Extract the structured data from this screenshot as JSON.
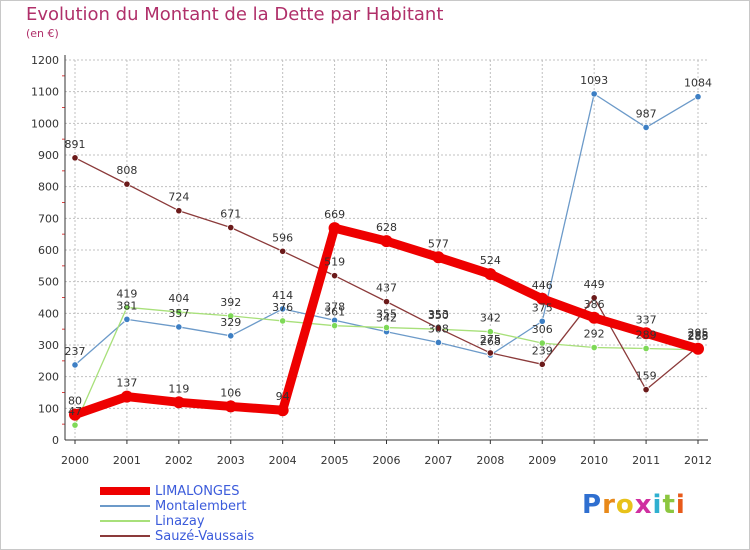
{
  "header": {
    "title": "Evolution du Montant de la Dette par Habitant",
    "subtitle": "(en €)"
  },
  "logo": {
    "text": "Proxiti",
    "colors": [
      "#2f6fd0",
      "#e8891a",
      "#e8c21a",
      "#d02fa0",
      "#2fb0d0",
      "#8cc63f",
      "#e85a1a"
    ]
  },
  "colors": {
    "background": "#ffffff",
    "grid": "#c0c0c0",
    "axis": "#333333",
    "title": "#b0306a",
    "tick_marks": "#e04040"
  },
  "chart_data": {
    "type": "line",
    "title": "Evolution du Montant de la Dette par Habitant",
    "subtitle": "(en €)",
    "xlabel": "",
    "ylabel": "",
    "x": [
      "2000",
      "2001",
      "2002",
      "2003",
      "2004",
      "2005",
      "2006",
      "2007",
      "2008",
      "2009",
      "2010",
      "2011",
      "2012"
    ],
    "ylim": [
      0,
      1200
    ],
    "yticks": [
      0,
      100,
      200,
      300,
      400,
      500,
      600,
      700,
      800,
      900,
      1000,
      1100,
      1200
    ],
    "grid": true,
    "legend_position": "bottom-left",
    "series": [
      {
        "name": "LIMALONGES",
        "color": "#ee0000",
        "legend_text_color": "#3b5bdb",
        "thick": true,
        "values": [
          80,
          137,
          119,
          106,
          94,
          669,
          628,
          577,
          524,
          446,
          386,
          337,
          288
        ]
      },
      {
        "name": "Montalembert",
        "color": "#6c9ac9",
        "point_color": "#3d7fc4",
        "legend_text_color": "#3b5bdb",
        "thick": false,
        "values": [
          237,
          381,
          357,
          329,
          414,
          378,
          342,
          308,
          268,
          375,
          1093,
          987,
          1084
        ]
      },
      {
        "name": "Linazay",
        "color": "#a8e07a",
        "point_color": "#7ed957",
        "legend_text_color": "#3b5bdb",
        "thick": false,
        "values": [
          47,
          419,
          404,
          392,
          376,
          361,
          355,
          350,
          342,
          306,
          292,
          289,
          285
        ]
      },
      {
        "name": "Sauzé-Vaussais",
        "color": "#8b3a3a",
        "point_color": "#6b1a1a",
        "legend_text_color": "#3b5bdb",
        "thick": false,
        "values": [
          891,
          808,
          724,
          671,
          596,
          519,
          437,
          353,
          275,
          239,
          449,
          159,
          295
        ]
      }
    ]
  }
}
